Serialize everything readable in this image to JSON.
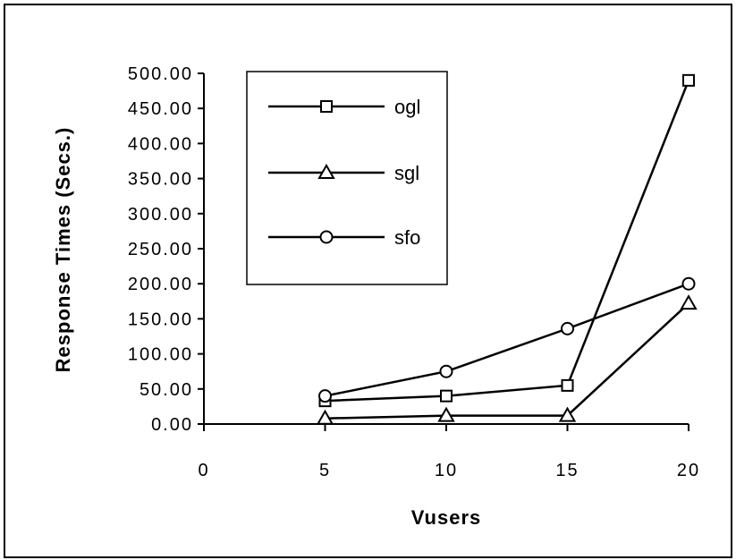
{
  "chart_data": {
    "type": "line",
    "x": [
      5,
      10,
      15,
      20
    ],
    "xlabel": "Vusers",
    "ylabel": "Response  Times  (Secs.)",
    "xlim": [
      0,
      20
    ],
    "ylim": [
      0,
      500
    ],
    "xticks": [
      "0",
      "5",
      "10",
      "15",
      "20"
    ],
    "yticks": [
      "0.00",
      "50.00",
      "100.00",
      "150.00",
      "200.00",
      "250.00",
      "300.00",
      "350.00",
      "400.00",
      "450.00",
      "500.00"
    ],
    "grid": false,
    "legend_position": "top-left",
    "series": [
      {
        "name": "ogl",
        "marker": "square",
        "values": [
          33,
          40,
          55,
          490
        ]
      },
      {
        "name": "sgl",
        "marker": "triangle",
        "values": [
          8,
          12,
          12,
          172
        ]
      },
      {
        "name": "sfo",
        "marker": "circle",
        "values": [
          40,
          75,
          136,
          200
        ]
      }
    ],
    "line_color": "#000000",
    "marker_fill": "#ffffff"
  }
}
